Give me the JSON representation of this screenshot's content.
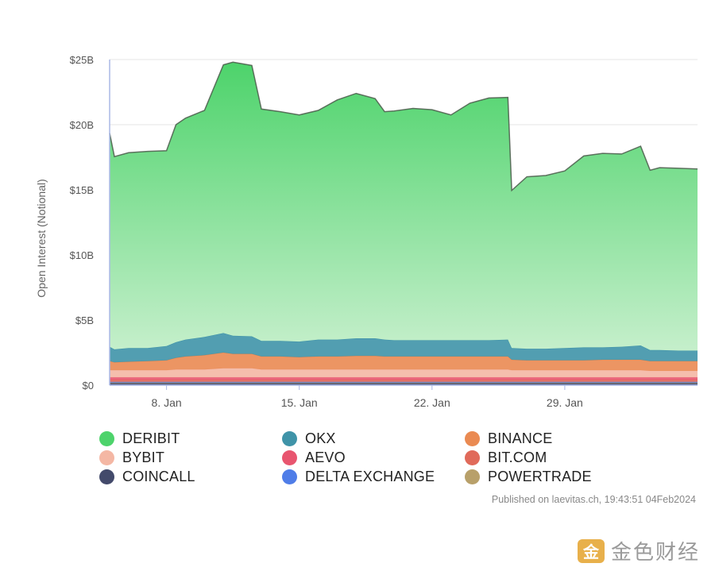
{
  "chart_data": {
    "type": "area",
    "stacked": true,
    "ylabel": "Open Interest (Notional)",
    "ylim": [
      0,
      25
    ],
    "y_ticks": [
      "$0",
      "$5B",
      "$10B",
      "$15B",
      "$20B",
      "$25B"
    ],
    "x_ticks": [
      {
        "day": 8,
        "label": "8. Jan"
      },
      {
        "day": 15,
        "label": "15. Jan"
      },
      {
        "day": 22,
        "label": "22. Jan"
      },
      {
        "day": 29,
        "label": "29. Jan"
      }
    ],
    "x_unit": "day of January 2024",
    "x": [
      5,
      5.25,
      6,
      7,
      8,
      8.5,
      9,
      10,
      11,
      11.5,
      12.5,
      13,
      14,
      15,
      16,
      17,
      18,
      19,
      19.5,
      20,
      21,
      22,
      23,
      24,
      25,
      26,
      26.2,
      27,
      28,
      29,
      30,
      31,
      32,
      33,
      33.5,
      34,
      35,
      36
    ],
    "series": [
      {
        "name": "COINCALL",
        "color": "#434a6b",
        "values": [
          0.15,
          0.15,
          0.15,
          0.15,
          0.15,
          0.15,
          0.15,
          0.15,
          0.15,
          0.15,
          0.15,
          0.15,
          0.15,
          0.15,
          0.15,
          0.15,
          0.15,
          0.15,
          0.15,
          0.15,
          0.15,
          0.15,
          0.15,
          0.15,
          0.15,
          0.15,
          0.15,
          0.15,
          0.15,
          0.15,
          0.15,
          0.15,
          0.15,
          0.15,
          0.15,
          0.15,
          0.15,
          0.15
        ]
      },
      {
        "name": "POWERTRADE",
        "color": "#b8a06a",
        "values": [
          0.05,
          0.05,
          0.05,
          0.05,
          0.05,
          0.05,
          0.05,
          0.05,
          0.05,
          0.05,
          0.05,
          0.05,
          0.05,
          0.05,
          0.05,
          0.05,
          0.05,
          0.05,
          0.05,
          0.05,
          0.05,
          0.05,
          0.05,
          0.05,
          0.05,
          0.05,
          0.05,
          0.05,
          0.05,
          0.05,
          0.05,
          0.05,
          0.05,
          0.05,
          0.05,
          0.05,
          0.05,
          0.05
        ]
      },
      {
        "name": "DELTA EXCHANGE",
        "color": "#4f7de8",
        "values": [
          0.05,
          0.05,
          0.05,
          0.05,
          0.05,
          0.05,
          0.05,
          0.05,
          0.05,
          0.05,
          0.05,
          0.05,
          0.05,
          0.05,
          0.05,
          0.05,
          0.05,
          0.05,
          0.05,
          0.05,
          0.05,
          0.05,
          0.05,
          0.05,
          0.05,
          0.05,
          0.05,
          0.05,
          0.05,
          0.05,
          0.05,
          0.05,
          0.05,
          0.05,
          0.05,
          0.05,
          0.05,
          0.05
        ]
      },
      {
        "name": "BIT.COM",
        "color": "#e06a5a",
        "values": [
          0.15,
          0.15,
          0.15,
          0.15,
          0.15,
          0.15,
          0.15,
          0.15,
          0.15,
          0.15,
          0.15,
          0.15,
          0.15,
          0.15,
          0.15,
          0.15,
          0.15,
          0.15,
          0.15,
          0.15,
          0.15,
          0.15,
          0.15,
          0.15,
          0.15,
          0.15,
          0.15,
          0.15,
          0.15,
          0.15,
          0.15,
          0.15,
          0.15,
          0.15,
          0.15,
          0.15,
          0.15,
          0.15
        ]
      },
      {
        "name": "AEVO",
        "color": "#e8556f",
        "values": [
          0.2,
          0.2,
          0.2,
          0.2,
          0.2,
          0.2,
          0.2,
          0.2,
          0.2,
          0.2,
          0.2,
          0.2,
          0.2,
          0.2,
          0.2,
          0.2,
          0.2,
          0.2,
          0.2,
          0.2,
          0.2,
          0.2,
          0.2,
          0.2,
          0.2,
          0.2,
          0.2,
          0.2,
          0.2,
          0.2,
          0.2,
          0.2,
          0.2,
          0.2,
          0.2,
          0.2,
          0.2,
          0.2
        ]
      },
      {
        "name": "BYBIT",
        "color": "#f4b7a4",
        "values": [
          0.55,
          0.55,
          0.55,
          0.55,
          0.55,
          0.6,
          0.6,
          0.6,
          0.7,
          0.7,
          0.7,
          0.6,
          0.6,
          0.6,
          0.6,
          0.6,
          0.6,
          0.6,
          0.6,
          0.6,
          0.6,
          0.6,
          0.6,
          0.6,
          0.6,
          0.6,
          0.55,
          0.55,
          0.55,
          0.55,
          0.55,
          0.55,
          0.55,
          0.55,
          0.5,
          0.5,
          0.5,
          0.5
        ]
      },
      {
        "name": "BINANCE",
        "color": "#ea8a52",
        "values": [
          0.7,
          0.6,
          0.65,
          0.7,
          0.75,
          0.9,
          1.0,
          1.1,
          1.2,
          1.1,
          1.1,
          1.0,
          1.0,
          0.95,
          1.0,
          1.0,
          1.05,
          1.05,
          1.0,
          1.0,
          1.0,
          1.0,
          1.0,
          1.0,
          1.0,
          1.0,
          0.8,
          0.75,
          0.75,
          0.75,
          0.75,
          0.8,
          0.8,
          0.8,
          0.75,
          0.75,
          0.75,
          0.75
        ]
      },
      {
        "name": "OKX",
        "color": "#3f93a8",
        "values": [
          1.1,
          1.0,
          1.05,
          1.0,
          1.1,
          1.2,
          1.3,
          1.4,
          1.5,
          1.4,
          1.35,
          1.2,
          1.2,
          1.2,
          1.3,
          1.3,
          1.35,
          1.35,
          1.3,
          1.25,
          1.25,
          1.25,
          1.25,
          1.25,
          1.25,
          1.3,
          0.9,
          0.9,
          0.9,
          0.95,
          1.0,
          0.95,
          1.0,
          1.1,
          0.85,
          0.85,
          0.8,
          0.8
        ]
      },
      {
        "name": "DERIBIT",
        "color": "#4dd36b",
        "values": [
          16.4,
          14.8,
          15.0,
          15.1,
          15.0,
          16.7,
          17.0,
          17.4,
          20.6,
          21.0,
          20.8,
          17.8,
          17.6,
          17.4,
          17.6,
          18.4,
          18.8,
          18.4,
          17.5,
          17.6,
          17.8,
          17.7,
          17.3,
          18.2,
          18.6,
          18.6,
          12.1,
          13.2,
          13.3,
          13.6,
          14.7,
          14.9,
          14.8,
          15.3,
          13.8,
          14.0,
          14.0,
          13.95
        ]
      }
    ]
  },
  "legend": [
    {
      "label": "DERIBIT",
      "color": "#4dd36b"
    },
    {
      "label": "OKX",
      "color": "#3f93a8"
    },
    {
      "label": "BINANCE",
      "color": "#ea8a52"
    },
    {
      "label": "BYBIT",
      "color": "#f4b7a4"
    },
    {
      "label": "AEVO",
      "color": "#e8556f"
    },
    {
      "label": "BIT.COM",
      "color": "#e06a5a"
    },
    {
      "label": "COINCALL",
      "color": "#434a6b"
    },
    {
      "label": "DELTA EXCHANGE",
      "color": "#4f7de8"
    },
    {
      "label": "POWERTRADE",
      "color": "#b8a06a"
    }
  ],
  "published": "Published on laevitas.ch, 19:43:51 04Feb2024",
  "watermark": {
    "text": "金色财经",
    "logo_glyph": "金"
  }
}
